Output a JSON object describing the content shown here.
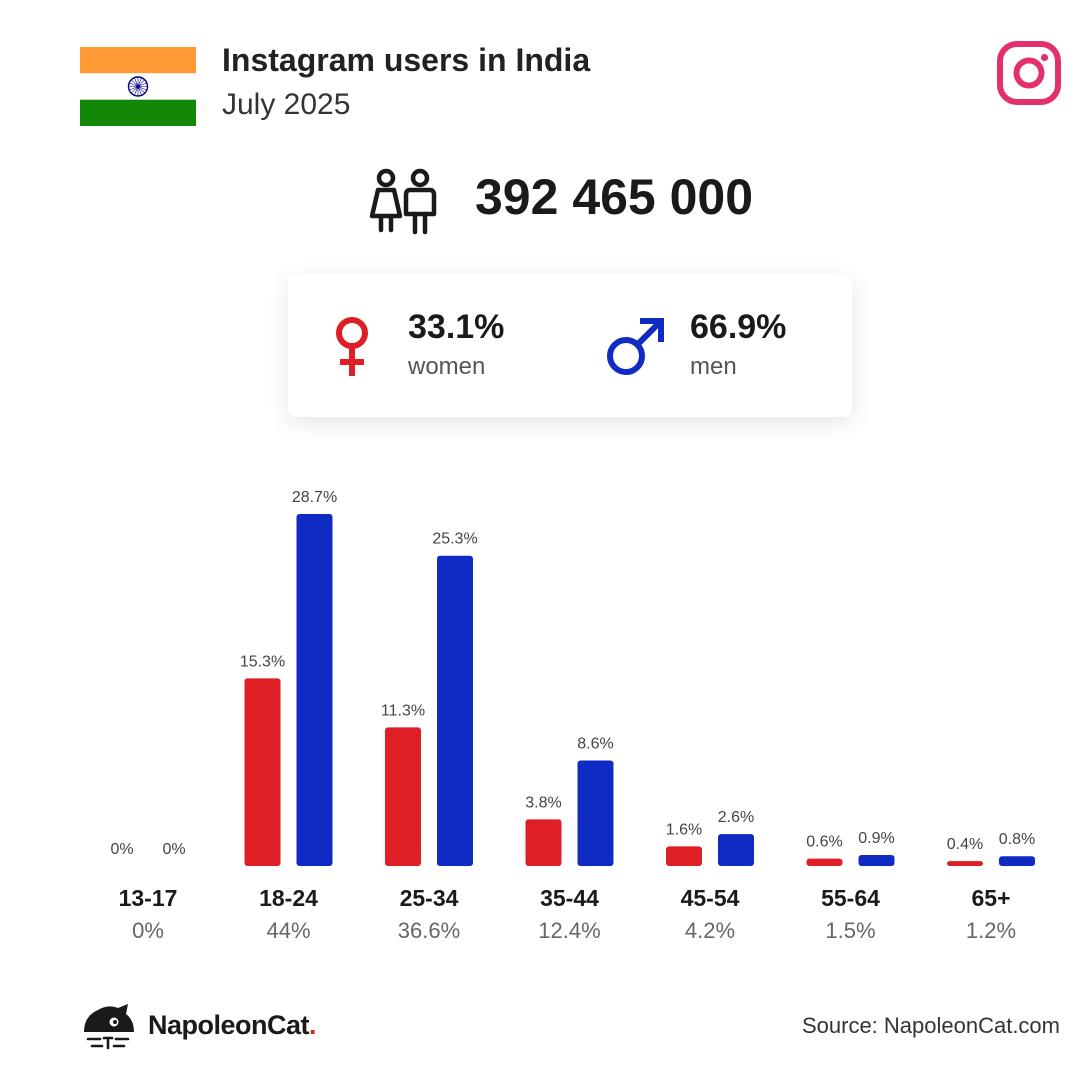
{
  "header": {
    "title": "Instagram users in India",
    "subtitle": "July 2025"
  },
  "total_users": "392 465 000",
  "gender": {
    "women_pct": "33.1%",
    "women_label": "women",
    "men_pct": "66.9%",
    "men_label": "men"
  },
  "colors": {
    "women": "#de1f26",
    "men": "#0f2bc4",
    "instagram": "#e4306c",
    "flag_saffron": "#ff9933",
    "flag_green": "#138808",
    "chakra": "#000080"
  },
  "icons": {
    "flag": "india-flag-icon",
    "logo": "instagram-logo-icon",
    "users": "people-icon",
    "female": "female-symbol-icon",
    "male": "male-symbol-icon",
    "brand": "napoleoncat-logo-icon"
  },
  "chart_data": {
    "type": "bar",
    "categories": [
      "13-17",
      "18-24",
      "25-34",
      "35-44",
      "45-54",
      "55-64",
      "65+"
    ],
    "category_totals": [
      "0%",
      "44%",
      "36.6%",
      "12.4%",
      "4.2%",
      "1.5%",
      "1.2%"
    ],
    "series": [
      {
        "name": "women",
        "color": "#de1f26",
        "values": [
          0,
          15.3,
          11.3,
          3.8,
          1.6,
          0.6,
          0.4
        ],
        "labels": [
          "0%",
          "15.3%",
          "11.3%",
          "3.8%",
          "1.6%",
          "0.6%",
          "0.4%"
        ]
      },
      {
        "name": "men",
        "color": "#0f2bc4",
        "values": [
          0,
          28.7,
          25.3,
          8.6,
          2.6,
          0.9,
          0.8
        ],
        "labels": [
          "0%",
          "28.7%",
          "25.3%",
          "8.6%",
          "2.6%",
          "0.9%",
          "0.8%"
        ]
      }
    ],
    "ylim": [
      0,
      28.7
    ],
    "grid": false,
    "legend": "none"
  },
  "footer": {
    "brand_name": "NapoleonCat",
    "brand_dot": ".",
    "source": "Source: NapoleonCat.com"
  }
}
